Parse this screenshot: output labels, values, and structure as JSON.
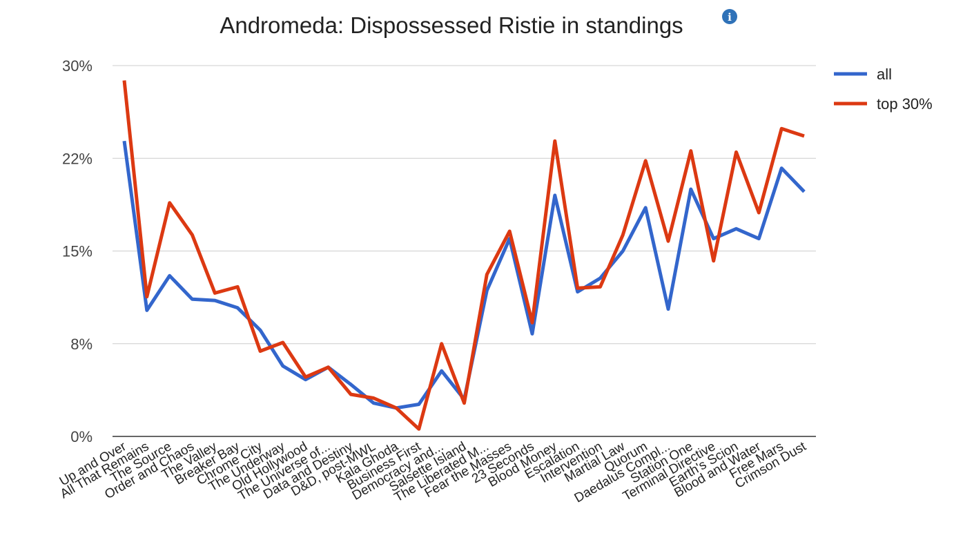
{
  "chart_data": {
    "type": "line",
    "title": "Andromeda: Dispossessed Ristie in standings",
    "xlabel": "",
    "ylabel": "",
    "ylim": [
      0,
      30
    ],
    "y_ticks": [
      0,
      7.5,
      15,
      22.5,
      30
    ],
    "y_tick_labels": [
      "0%",
      "8%",
      "15%",
      "22%",
      "30%"
    ],
    "grid": true,
    "legend_position": "right",
    "categories": [
      "Up and Over",
      "All That Remains",
      "The Source",
      "Order and Chaos",
      "The Valley",
      "Breaker Bay",
      "Chrome City",
      "The Underway",
      "Old Hollywood",
      "The Universe of...",
      "Data and Destiny",
      "D&D, post-MWL",
      "Kala Ghoda",
      "Business First",
      "Democracy and...",
      "Salsette Island",
      "The Liberated M...",
      "Fear the Masses",
      "23 Seconds",
      "Blood Money",
      "Escalation",
      "Intervention",
      "Martial Law",
      "Quorum",
      "Daedalus Compl...",
      "Station One",
      "Terminal Directive",
      "Earth's Scion",
      "Blood and Water",
      "Free Mars",
      "Crimson Dust"
    ],
    "series": [
      {
        "name": "all",
        "color": "#3366cc",
        "values": [
          23.9,
          10.2,
          13.0,
          11.1,
          11.0,
          10.4,
          8.6,
          5.7,
          4.6,
          5.6,
          4.2,
          2.7,
          2.3,
          2.6,
          5.3,
          3.0,
          11.8,
          16.0,
          8.3,
          19.5,
          11.7,
          12.8,
          15.0,
          18.5,
          10.3,
          20.0,
          16.0,
          16.8,
          16.0,
          21.7,
          19.8
        ]
      },
      {
        "name": "top 30%",
        "color": "#dc3912",
        "values": [
          28.8,
          11.3,
          18.9,
          16.3,
          11.6,
          12.1,
          6.9,
          7.6,
          4.8,
          5.6,
          3.4,
          3.1,
          2.3,
          0.6,
          7.5,
          2.7,
          13.1,
          16.6,
          9.2,
          23.9,
          12.0,
          12.1,
          16.3,
          22.3,
          15.8,
          23.1,
          14.2,
          23.0,
          18.1,
          24.9,
          24.3
        ]
      }
    ],
    "info_icon": "info-icon"
  }
}
